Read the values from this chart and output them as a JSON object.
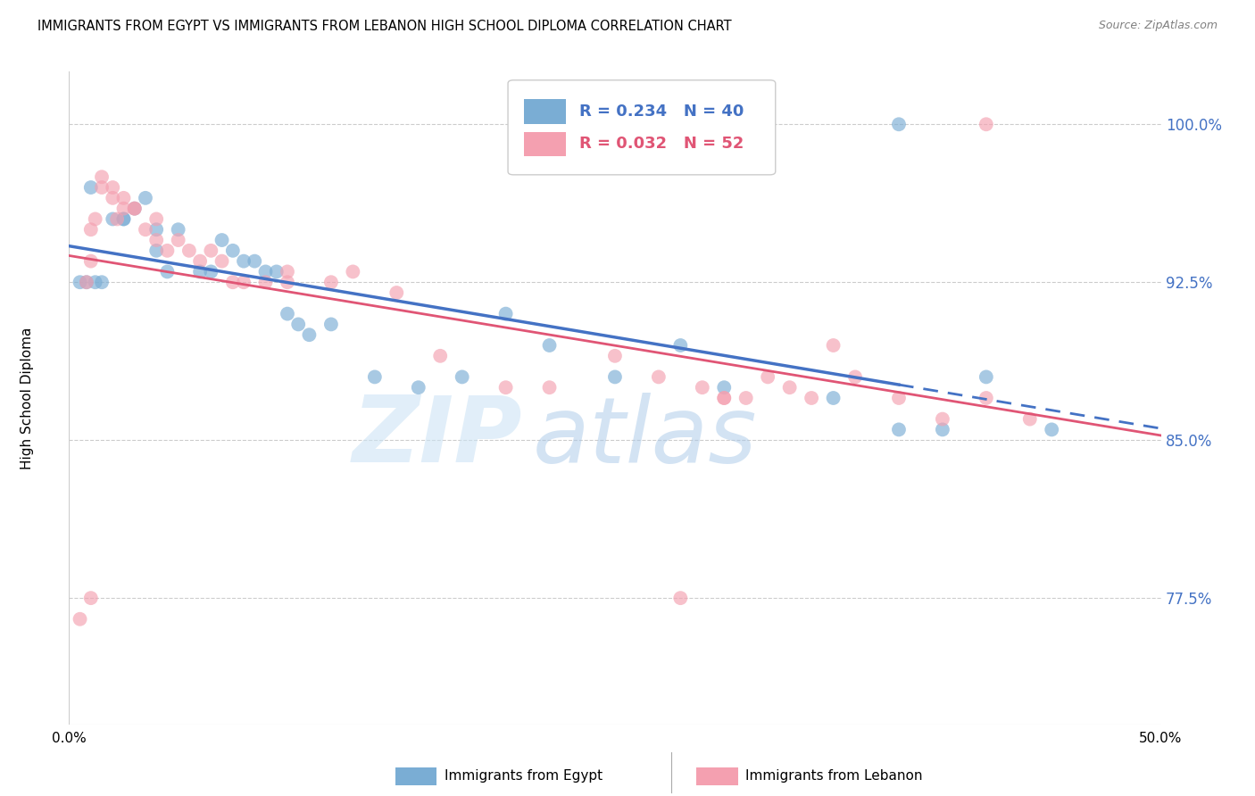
{
  "title": "IMMIGRANTS FROM EGYPT VS IMMIGRANTS FROM LEBANON HIGH SCHOOL DIPLOMA CORRELATION CHART",
  "source": "Source: ZipAtlas.com",
  "ylabel": "High School Diploma",
  "x_min": 0.0,
  "x_max": 0.5,
  "y_min": 0.715,
  "y_max": 1.025,
  "y_ticks": [
    0.775,
    0.85,
    0.925,
    1.0
  ],
  "y_tick_labels": [
    "77.5%",
    "85.0%",
    "92.5%",
    "100.0%"
  ],
  "color_egypt": "#7aadd4",
  "color_lebanon": "#f4a0b0",
  "color_egypt_line": "#4472c4",
  "color_lebanon_line": "#e05575",
  "legend_R_egypt": "R = 0.234",
  "legend_N_egypt": "N = 40",
  "legend_R_lebanon": "R = 0.032",
  "legend_N_lebanon": "N = 52",
  "legend_label_egypt": "Immigrants from Egypt",
  "legend_label_lebanon": "Immigrants from Lebanon",
  "watermark_zip": "ZIP",
  "watermark_atlas": "atlas",
  "egypt_x": [
    0.005,
    0.008,
    0.01,
    0.012,
    0.015,
    0.02,
    0.025,
    0.025,
    0.03,
    0.035,
    0.04,
    0.04,
    0.045,
    0.05,
    0.06,
    0.065,
    0.07,
    0.075,
    0.08,
    0.085,
    0.09,
    0.095,
    0.1,
    0.105,
    0.11,
    0.12,
    0.14,
    0.16,
    0.18,
    0.2,
    0.22,
    0.25,
    0.28,
    0.3,
    0.35,
    0.38,
    0.4,
    0.42,
    0.45,
    0.38
  ],
  "egypt_y": [
    0.925,
    0.925,
    0.97,
    0.925,
    0.925,
    0.955,
    0.955,
    0.955,
    0.96,
    0.965,
    0.94,
    0.95,
    0.93,
    0.95,
    0.93,
    0.93,
    0.945,
    0.94,
    0.935,
    0.935,
    0.93,
    0.93,
    0.91,
    0.905,
    0.9,
    0.905,
    0.88,
    0.875,
    0.88,
    0.91,
    0.895,
    0.88,
    0.895,
    0.875,
    0.87,
    0.855,
    0.855,
    0.88,
    0.855,
    1.0
  ],
  "lebanon_x": [
    0.005,
    0.008,
    0.01,
    0.01,
    0.012,
    0.015,
    0.015,
    0.02,
    0.02,
    0.022,
    0.025,
    0.025,
    0.03,
    0.03,
    0.035,
    0.04,
    0.04,
    0.045,
    0.05,
    0.055,
    0.06,
    0.065,
    0.07,
    0.075,
    0.08,
    0.09,
    0.1,
    0.1,
    0.12,
    0.13,
    0.15,
    0.17,
    0.2,
    0.22,
    0.25,
    0.27,
    0.29,
    0.3,
    0.31,
    0.32,
    0.33,
    0.34,
    0.35,
    0.36,
    0.38,
    0.4,
    0.42,
    0.44,
    0.01,
    0.28,
    0.3,
    0.42
  ],
  "lebanon_y": [
    0.765,
    0.925,
    0.935,
    0.95,
    0.955,
    0.97,
    0.975,
    0.965,
    0.97,
    0.955,
    0.96,
    0.965,
    0.96,
    0.96,
    0.95,
    0.955,
    0.945,
    0.94,
    0.945,
    0.94,
    0.935,
    0.94,
    0.935,
    0.925,
    0.925,
    0.925,
    0.925,
    0.93,
    0.925,
    0.93,
    0.92,
    0.89,
    0.875,
    0.875,
    0.89,
    0.88,
    0.875,
    0.87,
    0.87,
    0.88,
    0.875,
    0.87,
    0.895,
    0.88,
    0.87,
    0.86,
    0.87,
    0.86,
    0.775,
    0.775,
    0.87,
    1.0
  ]
}
